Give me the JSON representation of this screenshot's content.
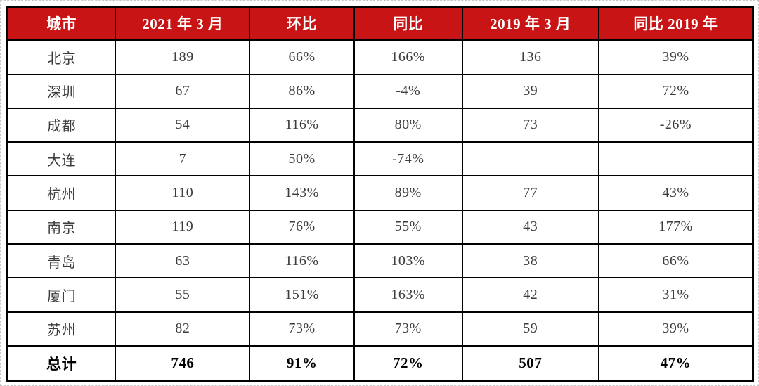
{
  "chart_data": {
    "type": "table",
    "columns": [
      "城市",
      "2021 年 3 月",
      "环比",
      "同比",
      "2019 年 3 月",
      "同比 2019 年"
    ],
    "rows": [
      [
        "北京",
        "189",
        "66%",
        "166%",
        "136",
        "39%"
      ],
      [
        "深圳",
        "67",
        "86%",
        "-4%",
        "39",
        "72%"
      ],
      [
        "成都",
        "54",
        "116%",
        "80%",
        "73",
        "-26%"
      ],
      [
        "大连",
        "7",
        "50%",
        "-74%",
        "—",
        "—"
      ],
      [
        "杭州",
        "110",
        "143%",
        "89%",
        "77",
        "43%"
      ],
      [
        "南京",
        "119",
        "76%",
        "55%",
        "43",
        "177%"
      ],
      [
        "青岛",
        "63",
        "116%",
        "103%",
        "38",
        "66%"
      ],
      [
        "厦门",
        "55",
        "151%",
        "163%",
        "42",
        "31%"
      ],
      [
        "苏州",
        "82",
        "73%",
        "73%",
        "59",
        "39%"
      ],
      [
        "总计",
        "746",
        "91%",
        "72%",
        "507",
        "47%"
      ]
    ],
    "layout_hints": {
      "header_style": "red background, white bold text",
      "total_row_bold": true,
      "grid": "on"
    }
  },
  "colors": {
    "header_bg": "#c81414",
    "header_text": "#ffffff",
    "grid_border": "#000000",
    "body_text": "#3c3c3c",
    "total_text": "#000000",
    "page_dash_border": "#c6c6c6"
  }
}
